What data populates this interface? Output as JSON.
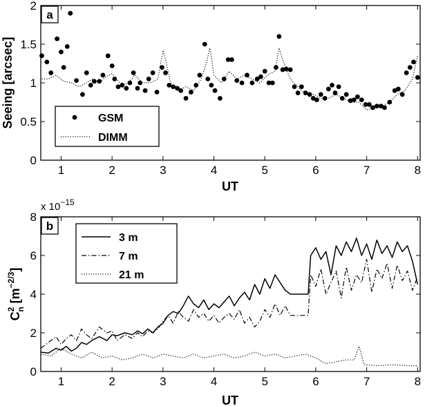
{
  "chart_data": [
    {
      "type": "scatter",
      "panel_label": "a",
      "xlabel": "UT",
      "ylabel": "Seeing [arcsec]",
      "xlim": [
        0.6,
        8.05
      ],
      "ylim": [
        0,
        2
      ],
      "xticks": [
        "1",
        "2",
        "3",
        "4",
        "5",
        "6",
        "7",
        "8"
      ],
      "yticks": [
        "0",
        "0.5",
        "1",
        "1.5",
        "2"
      ],
      "legend_position": "lower-left",
      "series": [
        {
          "name": "GSM",
          "style": "dots",
          "color": "#000000",
          "x": [
            0.62,
            0.72,
            0.8,
            0.92,
            1.0,
            1.05,
            1.12,
            1.18,
            1.3,
            1.42,
            1.5,
            1.58,
            1.65,
            1.75,
            1.82,
            1.92,
            2.0,
            2.05,
            2.12,
            2.2,
            2.28,
            2.35,
            2.42,
            2.5,
            2.55,
            2.65,
            2.72,
            2.8,
            2.88,
            2.98,
            3.05,
            3.12,
            3.2,
            3.28,
            3.35,
            3.45,
            3.55,
            3.65,
            3.72,
            3.82,
            3.88,
            3.95,
            4.02,
            4.12,
            4.2,
            4.28,
            4.35,
            4.45,
            4.55,
            4.65,
            4.75,
            4.85,
            4.92,
            5.0,
            5.08,
            5.15,
            5.22,
            5.28,
            5.35,
            5.42,
            5.5,
            5.58,
            5.65,
            5.72,
            5.8,
            5.88,
            5.95,
            6.02,
            6.1,
            6.18,
            6.25,
            6.32,
            6.38,
            6.45,
            6.52,
            6.6,
            6.68,
            6.75,
            6.82,
            6.9,
            6.98,
            7.05,
            7.12,
            7.2,
            7.28,
            7.35,
            7.45,
            7.55,
            7.62,
            7.7,
            7.78,
            7.85,
            7.92,
            8.0
          ],
          "y": [
            1.35,
            1.27,
            1.13,
            1.57,
            1.4,
            1.2,
            1.47,
            1.9,
            1.03,
            0.85,
            1.13,
            0.97,
            1.02,
            1.02,
            1.1,
            1.35,
            1.22,
            1.05,
            0.95,
            0.97,
            0.93,
            1.0,
            1.13,
            0.93,
            1.0,
            0.9,
            1.05,
            1.13,
            0.88,
            1.2,
            1.13,
            0.97,
            0.95,
            0.93,
            0.9,
            0.8,
            0.88,
            0.97,
            1.1,
            1.5,
            1.05,
            0.97,
            0.9,
            0.8,
            1.05,
            1.3,
            1.3,
            1.03,
            1.0,
            1.1,
            1.0,
            1.05,
            1.08,
            1.15,
            1.0,
            1.0,
            1.2,
            1.6,
            1.17,
            1.18,
            1.17,
            0.95,
            0.87,
            0.95,
            0.87,
            0.85,
            0.8,
            0.78,
            0.85,
            0.8,
            0.92,
            0.97,
            0.87,
            0.95,
            0.8,
            0.85,
            0.77,
            0.78,
            0.82,
            0.78,
            0.72,
            0.72,
            0.68,
            0.7,
            0.7,
            0.68,
            0.75,
            0.9,
            0.92,
            0.85,
            1.13,
            1.2,
            1.27,
            1.07
          ]
        },
        {
          "name": "DIMM",
          "style": "dotted-line",
          "color": "#000000",
          "x": [
            0.62,
            0.75,
            0.9,
            1.05,
            1.2,
            1.35,
            1.5,
            1.62,
            1.75,
            1.88,
            2.0,
            2.15,
            2.3,
            2.45,
            2.6,
            2.75,
            2.9,
            3.0,
            3.05,
            3.15,
            3.3,
            3.45,
            3.6,
            3.75,
            3.85,
            3.92,
            4.0,
            4.15,
            4.3,
            4.45,
            4.6,
            4.75,
            4.9,
            5.05,
            5.2,
            5.28,
            5.35,
            5.5,
            5.65,
            5.8,
            5.95,
            6.1,
            6.25,
            6.4,
            6.55,
            6.7,
            6.85,
            7.0,
            7.15,
            7.3,
            7.45,
            7.6,
            7.75,
            7.9,
            8.0
          ],
          "y": [
            1.05,
            1.05,
            1.1,
            1.02,
            1.0,
            0.95,
            1.0,
            1.05,
            1.0,
            1.08,
            1.12,
            1.0,
            0.98,
            1.1,
            1.0,
            1.0,
            1.05,
            1.42,
            1.3,
            1.0,
            0.9,
            0.95,
            0.9,
            1.05,
            1.25,
            1.45,
            1.1,
            1.0,
            1.15,
            1.05,
            1.1,
            1.05,
            1.0,
            1.1,
            1.15,
            1.45,
            1.3,
            1.05,
            0.95,
            0.85,
            0.85,
            0.8,
            0.8,
            0.85,
            0.8,
            0.75,
            0.75,
            0.65,
            0.68,
            0.7,
            0.75,
            0.85,
            0.9,
            1.05,
            1.35
          ]
        }
      ]
    },
    {
      "type": "line",
      "panel_label": "b",
      "xlabel": "UT",
      "ylabel": "C_n^2 [m^-2/3]",
      "ylabel_parts": {
        "base": "C",
        "sup": "2",
        "sub": "n",
        "unit": "[m",
        "unit_sup": "−2/3",
        "unit_end": "]"
      },
      "y_scale_note": "x 10",
      "y_scale_exponent": "−15",
      "xlim": [
        0.6,
        8.05
      ],
      "ylim": [
        0,
        8
      ],
      "xticks": [
        "1",
        "2",
        "3",
        "4",
        "5",
        "6",
        "7",
        "8"
      ],
      "yticks": [
        "0",
        "2",
        "4",
        "6",
        "8"
      ],
      "legend_position": "top-left",
      "series": [
        {
          "name": "3 m",
          "style": "solid",
          "x": [
            0.6,
            0.75,
            0.9,
            1.0,
            1.1,
            1.2,
            1.3,
            1.4,
            1.5,
            1.6,
            1.75,
            1.9,
            2.0,
            2.1,
            2.25,
            2.4,
            2.5,
            2.6,
            2.7,
            2.8,
            2.9,
            3.0,
            3.1,
            3.2,
            3.3,
            3.4,
            3.5,
            3.6,
            3.7,
            3.8,
            3.9,
            4.0,
            4.1,
            4.2,
            4.3,
            4.4,
            4.5,
            4.6,
            4.7,
            4.8,
            4.9,
            5.0,
            5.1,
            5.2,
            5.3,
            5.4,
            5.5,
            5.6,
            5.7,
            5.85,
            5.9,
            6.0,
            6.1,
            6.2,
            6.3,
            6.4,
            6.5,
            6.6,
            6.7,
            6.8,
            6.9,
            7.0,
            7.1,
            7.2,
            7.3,
            7.4,
            7.5,
            7.6,
            7.7,
            7.8,
            7.9,
            8.0
          ],
          "y": [
            1.0,
            0.95,
            1.2,
            1.1,
            1.3,
            1.05,
            1.2,
            1.5,
            1.4,
            1.6,
            1.8,
            1.6,
            1.9,
            1.85,
            2.0,
            1.9,
            2.1,
            1.95,
            2.2,
            2.0,
            2.3,
            2.5,
            2.9,
            3.1,
            3.0,
            3.4,
            3.9,
            3.5,
            3.3,
            3.7,
            3.2,
            3.5,
            3.3,
            3.6,
            3.9,
            3.4,
            3.8,
            4.1,
            3.7,
            4.5,
            4.0,
            4.8,
            4.3,
            5.0,
            4.6,
            4.2,
            4.0,
            4.0,
            4.0,
            4.0,
            6.0,
            6.4,
            5.8,
            6.2,
            5.0,
            6.5,
            6.0,
            6.7,
            6.2,
            6.9,
            6.0,
            6.6,
            5.8,
            6.8,
            6.1,
            6.5,
            5.9,
            6.7,
            6.2,
            6.5,
            5.7,
            4.5
          ]
        },
        {
          "name": "7 m",
          "style": "dash-dot",
          "x": [
            0.6,
            0.75,
            0.9,
            1.0,
            1.1,
            1.2,
            1.3,
            1.4,
            1.5,
            1.6,
            1.75,
            1.9,
            2.0,
            2.1,
            2.25,
            2.4,
            2.5,
            2.6,
            2.7,
            2.8,
            2.9,
            3.0,
            3.1,
            3.2,
            3.3,
            3.4,
            3.5,
            3.6,
            3.7,
            3.8,
            3.9,
            4.0,
            4.1,
            4.2,
            4.3,
            4.4,
            4.5,
            4.6,
            4.7,
            4.8,
            4.9,
            5.0,
            5.1,
            5.2,
            5.3,
            5.4,
            5.5,
            5.6,
            5.7,
            5.85,
            5.9,
            6.0,
            6.1,
            6.2,
            6.3,
            6.4,
            6.5,
            6.6,
            6.7,
            6.8,
            6.9,
            7.0,
            7.1,
            7.2,
            7.3,
            7.4,
            7.5,
            7.6,
            7.7,
            7.8,
            7.9,
            8.0
          ],
          "y": [
            1.2,
            1.5,
            1.8,
            1.4,
            1.7,
            1.9,
            1.6,
            2.2,
            1.9,
            1.7,
            2.3,
            2.0,
            2.1,
            1.6,
            1.9,
            1.7,
            2.0,
            1.8,
            2.1,
            2.0,
            2.2,
            2.6,
            2.9,
            2.5,
            3.1,
            2.8,
            2.6,
            3.2,
            2.8,
            3.0,
            2.6,
            2.9,
            2.5,
            2.8,
            3.0,
            2.7,
            3.2,
            2.5,
            2.8,
            2.3,
            2.6,
            3.2,
            2.8,
            3.5,
            2.9,
            3.4,
            2.9,
            2.9,
            2.9,
            2.9,
            5.0,
            4.4,
            5.3,
            4.0,
            4.6,
            5.2,
            3.8,
            5.4,
            4.2,
            5.0,
            4.6,
            5.8,
            4.1,
            5.3,
            4.8,
            5.6,
            4.3,
            5.5,
            4.7,
            5.2,
            4.2,
            4.9
          ]
        },
        {
          "name": "21 m",
          "style": "dotted",
          "x": [
            0.6,
            0.8,
            1.0,
            1.2,
            1.4,
            1.6,
            1.8,
            2.0,
            2.2,
            2.4,
            2.6,
            2.8,
            3.0,
            3.2,
            3.4,
            3.6,
            3.8,
            4.0,
            4.2,
            4.4,
            4.6,
            4.8,
            5.0,
            5.2,
            5.4,
            5.6,
            5.8,
            6.0,
            6.2,
            6.4,
            6.6,
            6.75,
            6.85,
            6.95,
            7.2,
            7.5,
            7.8,
            8.0
          ],
          "y": [
            0.9,
            0.8,
            1.2,
            0.9,
            0.7,
            1.0,
            0.7,
            0.8,
            0.6,
            0.7,
            0.9,
            0.7,
            0.9,
            0.8,
            0.7,
            0.9,
            0.7,
            0.8,
            0.9,
            0.7,
            0.8,
            1.0,
            0.8,
            0.9,
            0.7,
            0.8,
            0.9,
            0.7,
            0.4,
            0.5,
            0.6,
            0.6,
            1.3,
            0.35,
            0.3,
            0.35,
            0.3,
            0.3
          ]
        }
      ]
    }
  ]
}
